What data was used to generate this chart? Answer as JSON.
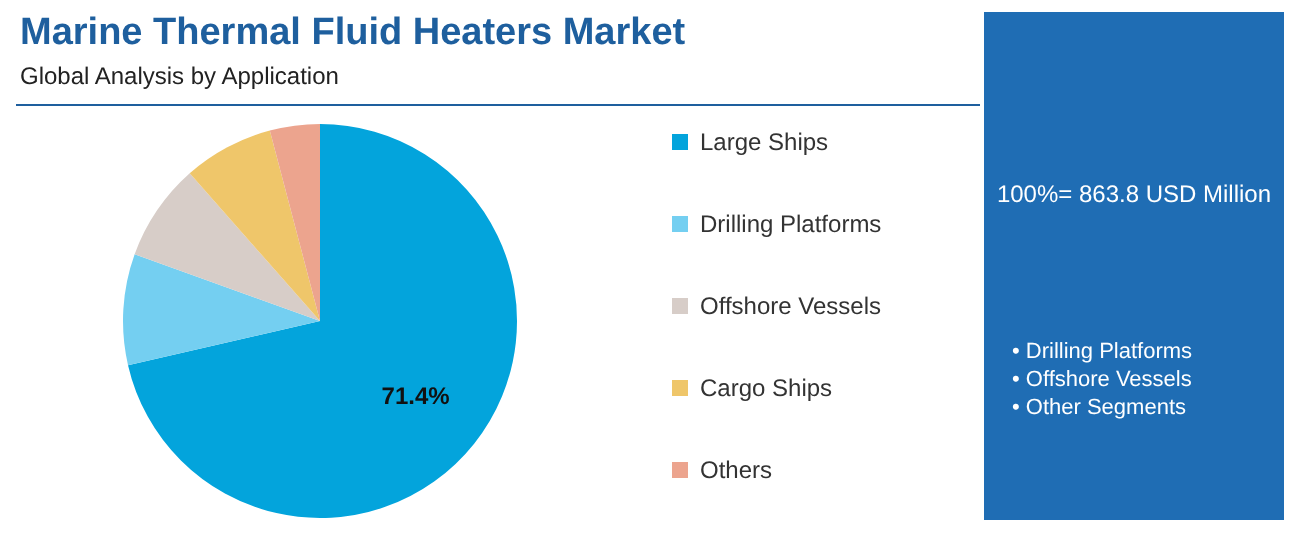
{
  "chart_data": {
    "type": "pie",
    "title": "Marine Thermal Fluid Heaters Market",
    "subtitle": "Global Analysis by Application",
    "categories": [
      "Large Ships",
      "Drilling Platforms",
      "Offshore Vessels",
      "Cargo Ships",
      "Others"
    ],
    "values": [
      71.4,
      9.1,
      8.0,
      7.4,
      4.1
    ],
    "colors": [
      "#03a4dc",
      "#74cff1",
      "#d7cdc8",
      "#efc66a",
      "#eca48e"
    ],
    "value_labels": [
      "71.4%",
      null,
      null,
      null,
      null
    ],
    "legend": "right",
    "annotations": [
      "100%= 863.8 USD Million",
      "• Drilling Platforms\n• Offshore Vessels\n• Other Segments"
    ]
  }
}
